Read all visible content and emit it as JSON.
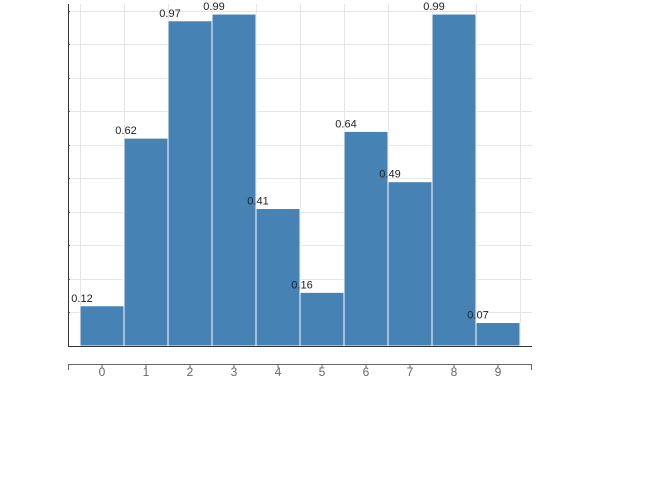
{
  "chart_data": {
    "type": "bar",
    "categories": [
      "0",
      "1",
      "2",
      "3",
      "4",
      "5",
      "6",
      "7",
      "8",
      "9"
    ],
    "values": [
      0.12,
      0.62,
      0.97,
      0.99,
      0.41,
      0.16,
      0.64,
      0.49,
      0.99,
      0.07
    ],
    "data_labels": [
      "0.12",
      "0.62",
      "0.97",
      "0.99",
      "0.41",
      "0.16",
      "0.64",
      "0.49",
      "0.99",
      "0.07"
    ],
    "ylim": [
      0,
      1.02
    ],
    "grid": true,
    "bar_color": "#4682b4"
  }
}
